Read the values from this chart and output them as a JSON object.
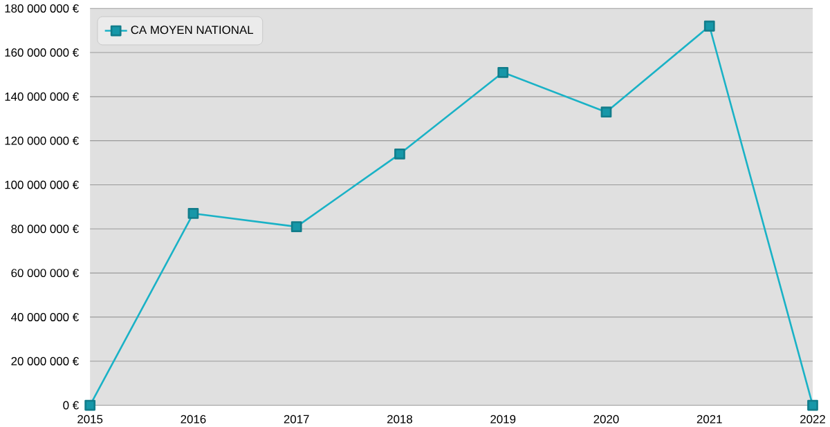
{
  "chart_data": {
    "type": "line",
    "x": [
      2015,
      2016,
      2017,
      2018,
      2019,
      2020,
      2021,
      2022
    ],
    "series": [
      {
        "name": "CA MOYEN NATIONAL",
        "color": "#1ab2c6",
        "values": [
          0,
          87000000,
          81000000,
          114000000,
          151000000,
          133000000,
          172000000,
          0
        ]
      }
    ],
    "xlim": [
      2015,
      2022
    ],
    "xticks": [
      2015,
      2016,
      2017,
      2018,
      2019,
      2020,
      2021,
      2022
    ],
    "ylim": [
      0,
      180000000
    ],
    "yticks": [
      {
        "value": 0,
        "label": "0 €"
      },
      {
        "value": 20000000,
        "label": "20 000 000 €"
      },
      {
        "value": 40000000,
        "label": "40 000 000 €"
      },
      {
        "value": 60000000,
        "label": "60 000 000 €"
      },
      {
        "value": 80000000,
        "label": "80 000 000 €"
      },
      {
        "value": 100000000,
        "label": "100 000 000 €"
      },
      {
        "value": 120000000,
        "label": "120 000 000 €"
      },
      {
        "value": 140000000,
        "label": "140 000 000 €"
      },
      {
        "value": 160000000,
        "label": "160 000 000 €"
      },
      {
        "value": 180000000,
        "label": "180 000 000 €"
      }
    ],
    "grid": "y",
    "legend": "top left",
    "marker": "square",
    "line_style": "solid"
  }
}
